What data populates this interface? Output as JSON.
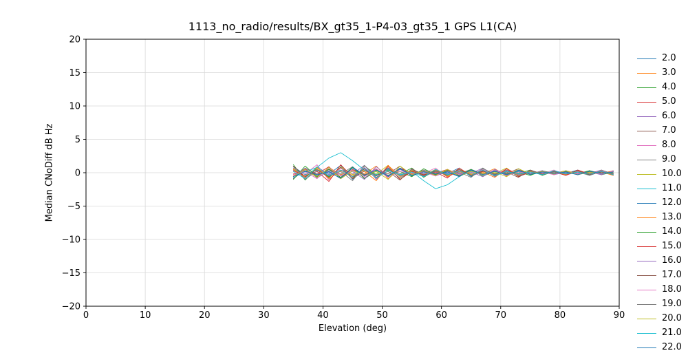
{
  "chart_data": {
    "type": "line",
    "title": "1113_no_radio/results/BX_gt35_1-P4-03_gt35_1 GPS L1(CA)",
    "xlabel": "Elevation (deg)",
    "ylabel": "Median CNoDiff dB Hz",
    "xlim": [
      0,
      90
    ],
    "ylim": [
      -20,
      20
    ],
    "xticks": [
      0,
      10,
      20,
      30,
      40,
      50,
      60,
      70,
      80,
      90
    ],
    "yticks": [
      -20,
      -15,
      -10,
      -5,
      0,
      5,
      10,
      15,
      20
    ],
    "grid": true,
    "grid_color": "#d9d9d9",
    "spine_color": "#000000",
    "legend_position": "right-outside",
    "x_start": 35,
    "x_step": 2,
    "series": [
      {
        "name": "2.0",
        "color": "#1f77b4",
        "values": [
          0.9,
          -0.3,
          0.4,
          -0.2,
          1.1,
          -1.0,
          0.6,
          -0.5,
          0.7,
          -0.8,
          0.5,
          -0.2,
          0.2,
          -0.1,
          0.7,
          -0.6,
          0.4,
          -0.3,
          0.4,
          -0.5,
          0.3,
          -0.1,
          0.1,
          -0.1,
          0.4,
          -0.4,
          0.2,
          -0.2
        ]
      },
      {
        "name": "3.0",
        "color": "#ff7f0e",
        "values": [
          -0.5,
          0.6,
          -0.7,
          0.8,
          -0.3,
          0.4,
          -0.2,
          1.0,
          -0.9,
          0.5,
          -0.3,
          0.4,
          -0.4,
          0.5,
          -0.2,
          0.2,
          -0.1,
          0.6,
          -0.5,
          0.3,
          -0.2,
          0.2,
          -0.3,
          0.3,
          -0.1,
          0.1,
          -0.1,
          0.3
        ]
      },
      {
        "name": "4.0",
        "color": "#2ca02c",
        "values": [
          1.2,
          -1.1,
          0.7,
          -0.6,
          0.8,
          -0.9,
          1.0,
          -0.3,
          0.4,
          -0.2,
          0.7,
          -0.7,
          0.4,
          -0.3,
          0.5,
          -0.5,
          0.6,
          -0.2,
          0.3,
          -0.1,
          0.4,
          -0.4,
          0.2,
          -0.2,
          0.3,
          -0.3,
          0.3,
          -0.1
        ]
      },
      {
        "name": "5.0",
        "color": "#d62728",
        "values": [
          -0.2,
          0.3,
          -0.2,
          0.9,
          -0.8,
          0.5,
          -0.4,
          0.6,
          -0.6,
          0.7,
          -0.1,
          0.2,
          -0.1,
          0.5,
          -0.5,
          0.3,
          -0.2,
          0.3,
          -0.4,
          0.4,
          -0.1,
          0.1,
          -0.1,
          0.3,
          -0.3,
          0.2,
          -0.1,
          0.2
        ]
      },
      {
        "name": "6.0",
        "color": "#9467bd",
        "values": [
          0.7,
          -0.8,
          0.9,
          -0.3,
          0.4,
          -0.2,
          1.1,
          -1.0,
          0.6,
          -0.5,
          0.4,
          -0.5,
          0.5,
          -0.2,
          0.2,
          -0.1,
          0.7,
          -0.6,
          0.4,
          -0.3,
          0.2,
          -0.3,
          0.3,
          -0.1,
          0.1,
          -0.1,
          0.4,
          -0.4
        ]
      },
      {
        "name": "7.0",
        "color": "#8c564b",
        "values": [
          -0.9,
          0.5,
          -0.5,
          0.6,
          -0.7,
          0.8,
          -0.3,
          0.4,
          -0.2,
          1.0,
          -0.5,
          0.3,
          -0.3,
          0.4,
          -0.4,
          0.5,
          -0.2,
          0.2,
          -0.1,
          0.6,
          -0.3,
          0.2,
          -0.2,
          0.2,
          -0.3,
          0.3,
          -0.1,
          0.1
        ]
      },
      {
        "name": "8.0",
        "color": "#e377c2",
        "values": [
          0.4,
          -0.2,
          1.2,
          -1.1,
          0.7,
          -0.6,
          0.8,
          -0.9,
          1.0,
          -0.3,
          0.3,
          -0.1,
          0.7,
          -0.7,
          0.4,
          -0.3,
          0.5,
          -0.5,
          0.6,
          -0.2,
          0.2,
          -0.1,
          0.4,
          -0.4,
          0.2,
          -0.2,
          0.3,
          -0.3
        ]
      },
      {
        "name": "9.0",
        "color": "#7f7f7f",
        "values": [
          -0.6,
          0.7,
          -0.2,
          0.3,
          -0.2,
          0.9,
          -0.8,
          0.5,
          -0.4,
          0.6,
          -0.4,
          0.4,
          -0.1,
          0.2,
          -0.1,
          0.5,
          -0.5,
          0.3,
          -0.2,
          0.3,
          -0.2,
          0.3,
          -0.1,
          0.1,
          -0.1,
          0.3,
          -0.3,
          0.2
        ]
      },
      {
        "name": "10.0",
        "color": "#bcbd22",
        "values": [
          0.6,
          -0.5,
          0.7,
          -0.8,
          0.9,
          -0.3,
          0.4,
          -0.2,
          1.1,
          -1.0,
          0.4,
          -0.3,
          0.4,
          -0.5,
          0.5,
          -0.2,
          0.2,
          -0.1,
          0.7,
          -0.6,
          0.2,
          -0.2,
          0.2,
          -0.3,
          0.3,
          -0.1,
          0.1,
          -0.1
        ]
      },
      {
        "name": "11.0",
        "color": "#17becf",
        "values": [
          0.3,
          0.1,
          0.8,
          2.2,
          3.0,
          1.8,
          0.4,
          -0.3,
          0.5,
          -0.4,
          0.2,
          -1.2,
          -2.4,
          -1.8,
          -0.6,
          0.3,
          -0.2,
          0.4,
          -0.3,
          0.2,
          -0.1,
          0.2,
          -0.2,
          0.3,
          -0.3,
          0.1,
          -0.2,
          0.1
        ]
      },
      {
        "name": "12.0",
        "color": "#1f77b4",
        "values": [
          -0.8,
          0.3,
          -0.3,
          0.2,
          -0.9,
          0.9,
          -0.5,
          0.4,
          -0.6,
          0.7,
          -0.5,
          0.2,
          -0.2,
          0.1,
          -0.6,
          0.5,
          -0.3,
          0.3,
          -0.4,
          0.4,
          -0.3,
          0.1,
          -0.1,
          0.1,
          -0.3,
          0.3,
          -0.2,
          0.1
        ]
      },
      {
        "name": "13.0",
        "color": "#ff7f0e",
        "values": [
          0.5,
          -0.7,
          0.8,
          -0.9,
          0.3,
          -0.4,
          0.2,
          -1.2,
          1.1,
          -0.6,
          0.3,
          -0.4,
          0.5,
          -0.6,
          0.2,
          -0.3,
          0.1,
          -0.7,
          0.6,
          -0.4,
          0.2,
          -0.3,
          0.3,
          -0.3,
          0.1,
          -0.1,
          0.1,
          -0.4
        ]
      },
      {
        "name": "14.0",
        "color": "#2ca02c",
        "values": [
          -1.0,
          1.0,
          -0.6,
          0.5,
          -0.7,
          0.8,
          -0.9,
          0.3,
          -0.4,
          0.2,
          -0.6,
          0.6,
          -0.3,
          0.3,
          -0.4,
          0.5,
          -0.5,
          0.2,
          -0.2,
          0.1,
          -0.4,
          0.3,
          -0.2,
          0.2,
          -0.2,
          0.3,
          -0.3,
          0.1
        ]
      },
      {
        "name": "15.0",
        "color": "#d62728",
        "values": [
          0.3,
          -0.5,
          0.2,
          -1.3,
          1.2,
          -0.7,
          0.6,
          -0.8,
          0.9,
          -1.0,
          0.2,
          -0.3,
          0.1,
          -0.8,
          0.7,
          -0.4,
          0.3,
          -0.5,
          0.6,
          -0.6,
          0.1,
          -0.2,
          0.1,
          -0.4,
          0.4,
          -0.2,
          0.2,
          -0.3
        ]
      },
      {
        "name": "16.0",
        "color": "#9467bd",
        "values": [
          -0.6,
          0.7,
          -0.8,
          0.3,
          -0.4,
          0.2,
          -1.0,
          0.9,
          -0.5,
          0.5,
          -0.4,
          0.4,
          -0.5,
          0.2,
          -0.2,
          0.1,
          -0.6,
          0.5,
          -0.3,
          0.3,
          -0.2,
          0.3,
          -0.3,
          0.1,
          -0.1,
          0.1,
          -0.3,
          0.3
        ]
      },
      {
        "name": "17.0",
        "color": "#8c564b",
        "values": [
          1.0,
          -0.6,
          0.5,
          -0.7,
          0.8,
          -0.9,
          0.3,
          -0.4,
          0.2,
          -1.1,
          0.6,
          -0.4,
          0.3,
          -0.4,
          0.5,
          -0.5,
          0.2,
          -0.2,
          0.1,
          -0.7,
          0.4,
          -0.2,
          0.2,
          -0.2,
          0.3,
          -0.3,
          0.1,
          -0.1
        ]
      },
      {
        "name": "18.0",
        "color": "#e377c2",
        "values": [
          -0.3,
          0.2,
          -0.9,
          0.8,
          -0.5,
          0.4,
          -0.6,
          0.6,
          -0.7,
          0.2,
          -0.2,
          0.1,
          -0.5,
          0.5,
          -0.3,
          0.2,
          -0.3,
          0.4,
          -0.4,
          0.1,
          -0.1,
          0.1,
          -0.3,
          0.3,
          -0.2,
          0.1,
          -0.2,
          0.2
        ]
      },
      {
        "name": "19.0",
        "color": "#7f7f7f",
        "values": [
          0.9,
          -1.0,
          0.3,
          -0.4,
          0.2,
          -1.2,
          1.1,
          -0.7,
          0.6,
          -0.8,
          0.5,
          -0.6,
          0.2,
          -0.3,
          0.1,
          -0.7,
          0.7,
          -0.4,
          0.3,
          -0.5,
          0.3,
          -0.3,
          0.1,
          -0.2,
          0.1,
          -0.4,
          0.4,
          -0.2
        ]
      },
      {
        "name": "20.0",
        "color": "#bcbd22",
        "values": [
          -0.6,
          0.5,
          -0.7,
          0.8,
          -0.9,
          0.3,
          -0.4,
          0.2,
          -1.0,
          1.0,
          -0.3,
          0.3,
          -0.4,
          0.5,
          -0.5,
          0.2,
          -0.2,
          0.1,
          -0.6,
          0.6,
          -0.2,
          0.2,
          -0.2,
          0.3,
          -0.3,
          0.1,
          -0.1,
          0.1
        ]
      },
      {
        "name": "21.0",
        "color": "#17becf",
        "values": [
          0.2,
          -0.9,
          0.9,
          -0.5,
          0.4,
          -0.6,
          0.7,
          -0.8,
          0.3,
          -0.3,
          0.1,
          -0.6,
          0.5,
          -0.3,
          0.3,
          -0.4,
          0.4,
          -0.5,
          0.2,
          -0.2,
          0.1,
          -0.3,
          0.3,
          -0.2,
          0.1,
          -0.2,
          0.2,
          -0.3
        ]
      },
      {
        "name": "22.0",
        "color": "#1f77b4",
        "values": [
          -0.6,
          0.2,
          -0.3,
          0.1,
          -0.8,
          0.7,
          -0.4,
          0.4,
          -0.5,
          0.6,
          -0.4,
          0.1,
          -0.2,
          0.1,
          -0.5,
          0.4,
          -0.3,
          0.2,
          -0.3,
          0.3,
          -0.2,
          0.1,
          -0.1,
          0.1,
          -0.3,
          0.2,
          -0.1,
          0.1
        ]
      }
    ]
  }
}
